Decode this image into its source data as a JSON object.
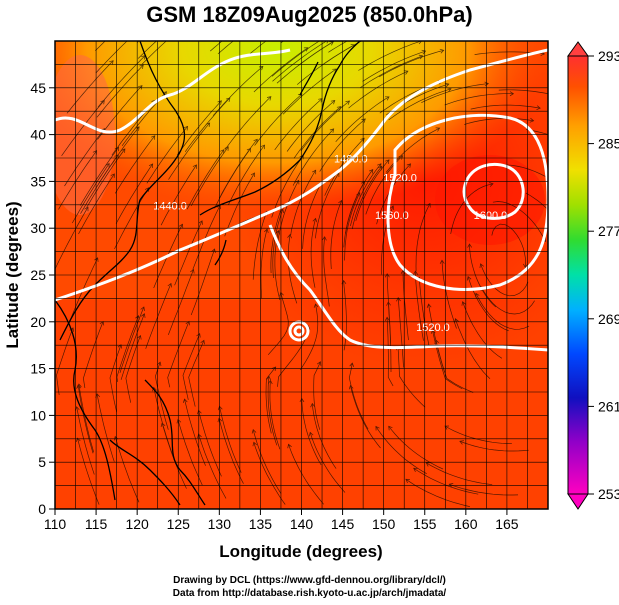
{
  "title": "GSM 18Z09Aug2025 (850.0hPa)",
  "chart_data": {
    "type": "heatmap",
    "title": "GSM 18Z09Aug2025 (850.0hPa)",
    "xlabel": "Longitude (degrees)",
    "ylabel": "Latitude  (degrees)",
    "xlim": [
      110,
      170
    ],
    "ylim": [
      0,
      50
    ],
    "x_ticks": [
      "110",
      "115",
      "120",
      "125",
      "130",
      "135",
      "140",
      "145",
      "150",
      "155",
      "160",
      "165"
    ],
    "y_ticks": [
      "0",
      "5",
      "10",
      "15",
      "20",
      "25",
      "30",
      "35",
      "40",
      "45"
    ],
    "grid": true,
    "colorbar": {
      "ticks": [
        "293",
        "285",
        "277",
        "269",
        "261",
        "253"
      ],
      "range": [
        253,
        293
      ],
      "colors": [
        "#e000c0",
        "#8000c0",
        "#0000c0",
        "#0050ff",
        "#00b8ff",
        "#00e0a0",
        "#40e040",
        "#a0e000",
        "#f0e000",
        "#ffb000",
        "#ff7000",
        "#ff3000",
        "#ff4040"
      ]
    },
    "contours": [
      {
        "label": "1440.0",
        "lon": 124,
        "lat": 32
      },
      {
        "label": "1480.0",
        "lon": 146,
        "lat": 37
      },
      {
        "label": "1520.0",
        "lon": 152,
        "lat": 35
      },
      {
        "label": "1560.0",
        "lon": 151,
        "lat": 31
      },
      {
        "label": "1600.0",
        "lon": 163,
        "lat": 31
      },
      {
        "label": "1520.0",
        "lon": 156,
        "lat": 19
      }
    ]
  },
  "footer": {
    "line1": "Drawing by DCL (https://www.gfd-dennou.org/library/dcl/)",
    "line2": "Data from http://database.rish.kyoto-u.ac.jp/arch/jmadata/"
  },
  "colors": {
    "warm": "#ff4400",
    "hot": "#ff2a00",
    "yellow": "#e8e000",
    "contour": "#ffffff"
  }
}
